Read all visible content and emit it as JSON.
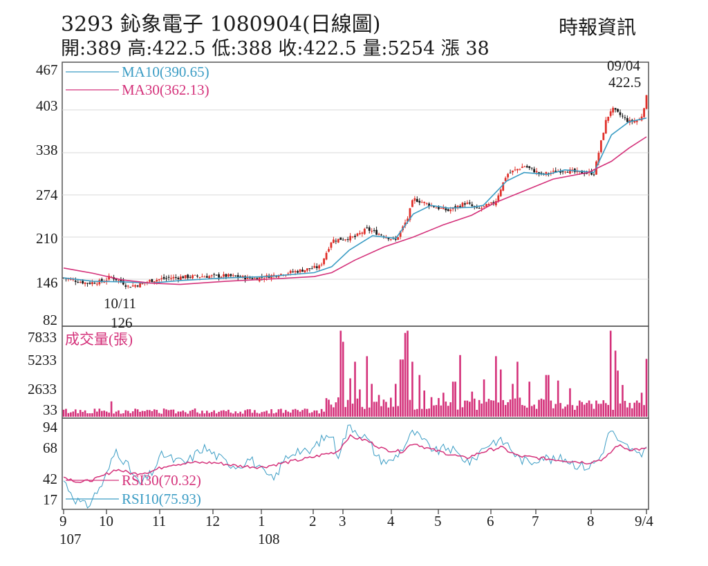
{
  "header": {
    "title": "3293 鈊象電子 1080904(日線圖)",
    "source": "時報資訊",
    "ohlc": "開:389 高:422.5 低:388 收:422.5 量:5254 漲 38"
  },
  "colors": {
    "ma10": "#3a9cc4",
    "ma30": "#d4317a",
    "volume": "#d4317a",
    "rsi10": "#3a9cc4",
    "rsi30": "#d4317a",
    "candle_up": "#e0302a",
    "candle_down": "#1a1a1a"
  },
  "chart_data": [
    {
      "type": "line",
      "name": "price",
      "ylim": [
        82,
        467
      ],
      "y_ticks": [
        "467",
        "403",
        "338",
        "274",
        "210",
        "146",
        "82"
      ],
      "legend": [
        {
          "label": "MA10(390.65)",
          "color": "#3a9cc4"
        },
        {
          "label": "MA30(362.13)",
          "color": "#d4317a"
        }
      ],
      "annotations": [
        {
          "date": "09/04",
          "value": "422.5",
          "position": "top-right"
        },
        {
          "date": "10/11",
          "value": "126",
          "position": "low"
        }
      ],
      "close_points": [
        [
          0,
          148
        ],
        [
          0.04,
          140
        ],
        [
          0.07,
          143
        ],
        [
          0.08,
          150
        ],
        [
          0.1,
          142
        ],
        [
          0.11,
          135
        ],
        [
          0.13,
          138
        ],
        [
          0.15,
          144
        ],
        [
          0.18,
          148
        ],
        [
          0.22,
          150
        ],
        [
          0.28,
          151
        ],
        [
          0.33,
          147
        ],
        [
          0.36,
          152
        ],
        [
          0.4,
          158
        ],
        [
          0.44,
          165
        ],
        [
          0.46,
          205
        ],
        [
          0.5,
          210
        ],
        [
          0.52,
          222
        ],
        [
          0.57,
          205
        ],
        [
          0.59,
          238
        ],
        [
          0.6,
          268
        ],
        [
          0.64,
          255
        ],
        [
          0.66,
          250
        ],
        [
          0.69,
          262
        ],
        [
          0.71,
          252
        ],
        [
          0.74,
          262
        ],
        [
          0.76,
          305
        ],
        [
          0.79,
          318
        ],
        [
          0.82,
          305
        ],
        [
          0.86,
          312
        ],
        [
          0.88,
          308
        ],
        [
          0.91,
          307
        ],
        [
          0.93,
          385
        ],
        [
          0.94,
          405
        ],
        [
          0.97,
          385
        ],
        [
          0.99,
          388
        ],
        [
          1,
          422.5
        ]
      ],
      "series": [
        {
          "name": "MA10",
          "points": [
            [
              0,
              148
            ],
            [
              0.05,
              143
            ],
            [
              0.1,
              142
            ],
            [
              0.15,
              140
            ],
            [
              0.2,
              144
            ],
            [
              0.28,
              148
            ],
            [
              0.35,
              150
            ],
            [
              0.43,
              156
            ],
            [
              0.46,
              165
            ],
            [
              0.49,
              190
            ],
            [
              0.53,
              212
            ],
            [
              0.57,
              208
            ],
            [
              0.6,
              245
            ],
            [
              0.63,
              258
            ],
            [
              0.66,
              254
            ],
            [
              0.7,
              255
            ],
            [
              0.72,
              258
            ],
            [
              0.76,
              295
            ],
            [
              0.79,
              308
            ],
            [
              0.83,
              305
            ],
            [
              0.86,
              312
            ],
            [
              0.91,
              308
            ],
            [
              0.94,
              365
            ],
            [
              0.97,
              385
            ],
            [
              1,
              390.65
            ]
          ]
        },
        {
          "name": "MA30",
          "points": [
            [
              0,
              163
            ],
            [
              0.05,
              155
            ],
            [
              0.1,
              145
            ],
            [
              0.15,
              140
            ],
            [
              0.2,
              138
            ],
            [
              0.28,
              143
            ],
            [
              0.35,
              146
            ],
            [
              0.43,
              150
            ],
            [
              0.46,
              156
            ],
            [
              0.5,
              175
            ],
            [
              0.55,
              195
            ],
            [
              0.6,
              210
            ],
            [
              0.65,
              228
            ],
            [
              0.7,
              243
            ],
            [
              0.74,
              262
            ],
            [
              0.79,
              280
            ],
            [
              0.84,
              298
            ],
            [
              0.9,
              308
            ],
            [
              0.94,
              325
            ],
            [
              0.97,
              345
            ],
            [
              1,
              362.13
            ]
          ]
        }
      ]
    },
    {
      "type": "bar",
      "name": "成交量(張)",
      "ylabel": "成交量(張)",
      "ylim": [
        33,
        7833
      ],
      "y_ticks": [
        "7833",
        "5233",
        "2633",
        "33"
      ],
      "spikes": [
        [
          0.474,
          7800
        ],
        [
          0.48,
          6800
        ],
        [
          0.49,
          3500
        ],
        [
          0.5,
          5000
        ],
        [
          0.51,
          2500
        ],
        [
          0.52,
          5500
        ],
        [
          0.53,
          3000
        ],
        [
          0.54,
          2000
        ],
        [
          0.57,
          3000
        ],
        [
          0.58,
          5200
        ],
        [
          0.585,
          7600
        ],
        [
          0.59,
          7800
        ],
        [
          0.6,
          5000
        ],
        [
          0.61,
          3800
        ],
        [
          0.62,
          2400
        ],
        [
          0.63,
          1800
        ],
        [
          0.65,
          2200
        ],
        [
          0.67,
          3200
        ],
        [
          0.68,
          5600
        ],
        [
          0.7,
          2300
        ],
        [
          0.72,
          3400
        ],
        [
          0.74,
          5500
        ],
        [
          0.75,
          4300
        ],
        [
          0.77,
          3000
        ],
        [
          0.78,
          5000
        ],
        [
          0.8,
          3200
        ],
        [
          0.83,
          3800
        ],
        [
          0.85,
          3300
        ],
        [
          0.87,
          2600
        ],
        [
          0.9,
          1500
        ],
        [
          0.92,
          1200
        ],
        [
          0.94,
          7800
        ],
        [
          0.945,
          6000
        ],
        [
          0.95,
          4200
        ],
        [
          0.96,
          2900
        ],
        [
          0.98,
          1300
        ],
        [
          0.99,
          2200
        ],
        [
          1,
          5254
        ]
      ]
    },
    {
      "type": "line",
      "name": "RSI",
      "ylim": [
        17,
        94
      ],
      "y_ticks": [
        "94",
        "68",
        "42",
        "17"
      ],
      "legend": [
        {
          "label": "RSI30(70.32)",
          "color": "#d4317a"
        },
        {
          "label": "RSI10(75.93)",
          "color": "#3a9cc4"
        }
      ],
      "series": [
        {
          "name": "RSI10",
          "points": [
            [
              0,
              42
            ],
            [
              0.02,
              25
            ],
            [
              0.04,
              18
            ],
            [
              0.07,
              42
            ],
            [
              0.09,
              70
            ],
            [
              0.11,
              55
            ],
            [
              0.13,
              38
            ],
            [
              0.15,
              48
            ],
            [
              0.17,
              66
            ],
            [
              0.19,
              60
            ],
            [
              0.21,
              58
            ],
            [
              0.24,
              72
            ],
            [
              0.26,
              65
            ],
            [
              0.28,
              58
            ],
            [
              0.3,
              55
            ],
            [
              0.32,
              62
            ],
            [
              0.34,
              50
            ],
            [
              0.36,
              42
            ],
            [
              0.38,
              62
            ],
            [
              0.4,
              70
            ],
            [
              0.42,
              66
            ],
            [
              0.44,
              78
            ],
            [
              0.46,
              84
            ],
            [
              0.47,
              64
            ],
            [
              0.49,
              92
            ],
            [
              0.5,
              88
            ],
            [
              0.52,
              80
            ],
            [
              0.54,
              62
            ],
            [
              0.56,
              58
            ],
            [
              0.58,
              70
            ],
            [
              0.6,
              86
            ],
            [
              0.62,
              76
            ],
            [
              0.64,
              68
            ],
            [
              0.66,
              72
            ],
            [
              0.68,
              64
            ],
            [
              0.7,
              58
            ],
            [
              0.72,
              72
            ],
            [
              0.74,
              78
            ],
            [
              0.76,
              76
            ],
            [
              0.78,
              62
            ],
            [
              0.8,
              58
            ],
            [
              0.82,
              64
            ],
            [
              0.84,
              60
            ],
            [
              0.86,
              62
            ],
            [
              0.88,
              56
            ],
            [
              0.9,
              54
            ],
            [
              0.92,
              62
            ],
            [
              0.94,
              90
            ],
            [
              0.95,
              76
            ],
            [
              0.97,
              72
            ],
            [
              0.99,
              62
            ],
            [
              1,
              75.93
            ]
          ]
        },
        {
          "name": "RSI30",
          "points": [
            [
              0,
              45
            ],
            [
              0.03,
              40
            ],
            [
              0.06,
              44
            ],
            [
              0.09,
              52
            ],
            [
              0.12,
              48
            ],
            [
              0.15,
              50
            ],
            [
              0.18,
              56
            ],
            [
              0.22,
              58
            ],
            [
              0.26,
              58
            ],
            [
              0.3,
              55
            ],
            [
              0.34,
              54
            ],
            [
              0.38,
              58
            ],
            [
              0.42,
              62
            ],
            [
              0.45,
              66
            ],
            [
              0.47,
              68
            ],
            [
              0.49,
              82
            ],
            [
              0.52,
              78
            ],
            [
              0.55,
              70
            ],
            [
              0.58,
              68
            ],
            [
              0.6,
              76
            ],
            [
              0.63,
              70
            ],
            [
              0.66,
              66
            ],
            [
              0.69,
              62
            ],
            [
              0.72,
              68
            ],
            [
              0.75,
              72
            ],
            [
              0.78,
              64
            ],
            [
              0.82,
              62
            ],
            [
              0.86,
              60
            ],
            [
              0.9,
              58
            ],
            [
              0.93,
              62
            ],
            [
              0.95,
              74
            ],
            [
              0.97,
              70
            ],
            [
              1,
              70.32
            ]
          ]
        }
      ]
    }
  ],
  "x_axis": {
    "ticks": [
      "9",
      "10",
      "11",
      "12",
      "1",
      "2",
      "3",
      "4",
      "5",
      "6",
      "7",
      "8",
      "9/4"
    ],
    "year_labels": [
      "107",
      "108"
    ]
  }
}
